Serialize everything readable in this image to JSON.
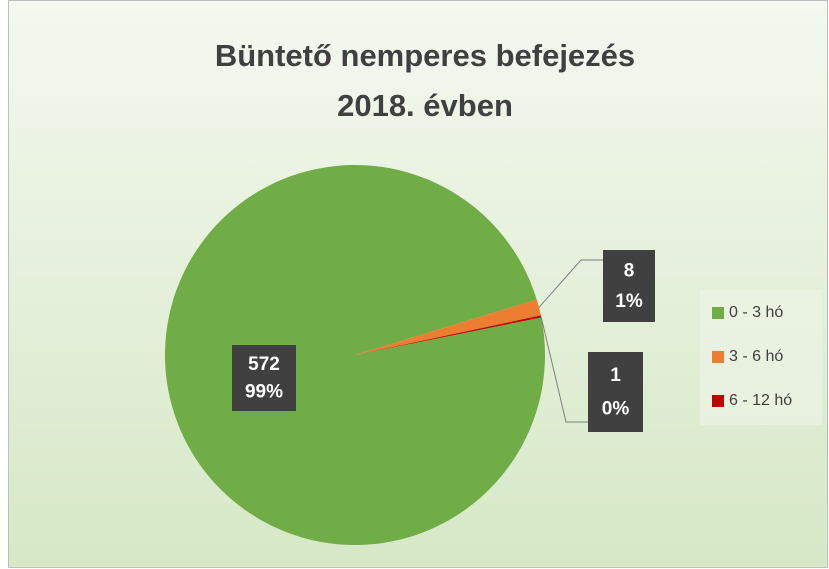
{
  "chart_data": {
    "type": "pie",
    "title": [
      "Büntető nemperes befejezés",
      "2018. évben"
    ],
    "categories": [
      "0 - 3 hó",
      "3 - 6 hó",
      "6 - 12 hó"
    ],
    "values": [
      572,
      8,
      1
    ],
    "percent_labels": [
      "99%",
      "1%",
      "0%"
    ],
    "colors": [
      "#70ad47",
      "#ed7d31",
      "#c00000"
    ],
    "legend": "right"
  }
}
